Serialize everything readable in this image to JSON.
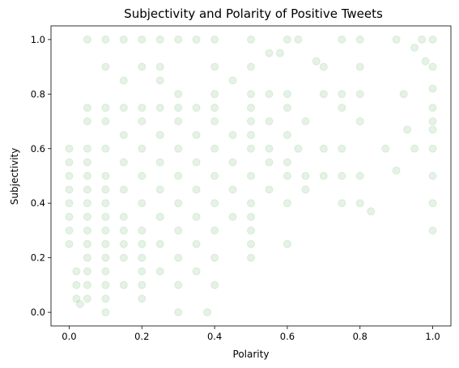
{
  "chart_data": {
    "type": "scatter",
    "title": "Subjectivity and Polarity of Positive Tweets",
    "xlabel": "Polarity",
    "ylabel": "Subjectivity",
    "xlim": [
      -0.05,
      1.05
    ],
    "ylim": [
      -0.05,
      1.05
    ],
    "x_ticks": [
      "0.0",
      "0.2",
      "0.4",
      "0.6",
      "0.8",
      "1.0"
    ],
    "y_ticks": [
      "0.0",
      "0.2",
      "0.4",
      "0.6",
      "0.8",
      "1.0"
    ],
    "grid": false,
    "legend": "none",
    "series": [
      {
        "color": "#008000",
        "alpha": 0.1,
        "marker": "circle",
        "points": [
          [
            0.05,
            1.0
          ],
          [
            0.1,
            1.0
          ],
          [
            0.15,
            1.0
          ],
          [
            0.2,
            1.0
          ],
          [
            0.25,
            1.0
          ],
          [
            0.3,
            1.0
          ],
          [
            0.35,
            1.0
          ],
          [
            0.4,
            1.0
          ],
          [
            0.5,
            1.0
          ],
          [
            0.6,
            1.0
          ],
          [
            0.63,
            1.0
          ],
          [
            0.75,
            1.0
          ],
          [
            0.8,
            1.0
          ],
          [
            0.9,
            1.0
          ],
          [
            1.0,
            1.0
          ],
          [
            0.1,
            0.9
          ],
          [
            0.2,
            0.9
          ],
          [
            0.25,
            0.9
          ],
          [
            0.4,
            0.9
          ],
          [
            0.5,
            0.9
          ],
          [
            0.55,
            0.95
          ],
          [
            0.7,
            0.9
          ],
          [
            0.8,
            0.9
          ],
          [
            1.0,
            0.9
          ],
          [
            0.15,
            0.85
          ],
          [
            0.25,
            0.85
          ],
          [
            0.3,
            0.8
          ],
          [
            0.4,
            0.8
          ],
          [
            0.45,
            0.85
          ],
          [
            0.5,
            0.8
          ],
          [
            0.55,
            0.8
          ],
          [
            0.6,
            0.8
          ],
          [
            0.7,
            0.8
          ],
          [
            0.75,
            0.8
          ],
          [
            0.8,
            0.8
          ],
          [
            0.05,
            0.75
          ],
          [
            0.1,
            0.75
          ],
          [
            0.15,
            0.75
          ],
          [
            0.2,
            0.75
          ],
          [
            0.25,
            0.75
          ],
          [
            0.3,
            0.75
          ],
          [
            0.35,
            0.75
          ],
          [
            0.4,
            0.75
          ],
          [
            0.5,
            0.75
          ],
          [
            0.6,
            0.75
          ],
          [
            0.75,
            0.75
          ],
          [
            1.0,
            0.75
          ],
          [
            0.05,
            0.7
          ],
          [
            0.1,
            0.7
          ],
          [
            0.2,
            0.7
          ],
          [
            0.3,
            0.7
          ],
          [
            0.4,
            0.7
          ],
          [
            0.5,
            0.7
          ],
          [
            0.55,
            0.7
          ],
          [
            0.65,
            0.7
          ],
          [
            0.8,
            0.7
          ],
          [
            1.0,
            0.7
          ],
          [
            0.93,
            0.67
          ],
          [
            0.15,
            0.65
          ],
          [
            0.25,
            0.65
          ],
          [
            0.35,
            0.65
          ],
          [
            0.45,
            0.65
          ],
          [
            0.5,
            0.65
          ],
          [
            0.6,
            0.65
          ],
          [
            0.7,
            0.6
          ],
          [
            0.75,
            0.6
          ],
          [
            0.87,
            0.6
          ],
          [
            1.0,
            0.6
          ],
          [
            0.05,
            0.6
          ],
          [
            0.1,
            0.6
          ],
          [
            0.2,
            0.6
          ],
          [
            0.3,
            0.6
          ],
          [
            0.4,
            0.6
          ],
          [
            0.5,
            0.6
          ],
          [
            0.55,
            0.6
          ],
          [
            0.63,
            0.6
          ],
          [
            0.05,
            0.55
          ],
          [
            0.15,
            0.55
          ],
          [
            0.25,
            0.55
          ],
          [
            0.35,
            0.55
          ],
          [
            0.45,
            0.55
          ],
          [
            0.55,
            0.55
          ],
          [
            0.6,
            0.55
          ],
          [
            0.65,
            0.5
          ],
          [
            0.7,
            0.5
          ],
          [
            0.75,
            0.5
          ],
          [
            0.8,
            0.5
          ],
          [
            1.0,
            0.5
          ],
          [
            0.05,
            0.5
          ],
          [
            0.1,
            0.5
          ],
          [
            0.2,
            0.5
          ],
          [
            0.3,
            0.5
          ],
          [
            0.4,
            0.5
          ],
          [
            0.5,
            0.5
          ],
          [
            0.6,
            0.5
          ],
          [
            0.05,
            0.45
          ],
          [
            0.1,
            0.45
          ],
          [
            0.15,
            0.45
          ],
          [
            0.25,
            0.45
          ],
          [
            0.35,
            0.45
          ],
          [
            0.45,
            0.45
          ],
          [
            0.55,
            0.45
          ],
          [
            0.65,
            0.45
          ],
          [
            0.05,
            0.4
          ],
          [
            0.1,
            0.4
          ],
          [
            0.2,
            0.4
          ],
          [
            0.3,
            0.4
          ],
          [
            0.4,
            0.4
          ],
          [
            0.5,
            0.4
          ],
          [
            0.6,
            0.4
          ],
          [
            0.75,
            0.4
          ],
          [
            0.8,
            0.4
          ],
          [
            1.0,
            0.4
          ],
          [
            0.83,
            0.37
          ],
          [
            0.05,
            0.35
          ],
          [
            0.1,
            0.35
          ],
          [
            0.15,
            0.35
          ],
          [
            0.25,
            0.35
          ],
          [
            0.35,
            0.35
          ],
          [
            0.45,
            0.35
          ],
          [
            0.5,
            0.35
          ],
          [
            0.05,
            0.3
          ],
          [
            0.1,
            0.3
          ],
          [
            0.15,
            0.3
          ],
          [
            0.2,
            0.3
          ],
          [
            0.3,
            0.3
          ],
          [
            0.4,
            0.3
          ],
          [
            0.5,
            0.3
          ],
          [
            1.0,
            0.3
          ],
          [
            0.05,
            0.25
          ],
          [
            0.1,
            0.25
          ],
          [
            0.15,
            0.25
          ],
          [
            0.2,
            0.25
          ],
          [
            0.25,
            0.25
          ],
          [
            0.35,
            0.25
          ],
          [
            0.5,
            0.25
          ],
          [
            0.6,
            0.25
          ],
          [
            0.05,
            0.2
          ],
          [
            0.1,
            0.2
          ],
          [
            0.15,
            0.2
          ],
          [
            0.2,
            0.2
          ],
          [
            0.3,
            0.2
          ],
          [
            0.4,
            0.2
          ],
          [
            0.5,
            0.2
          ],
          [
            0.02,
            0.15
          ],
          [
            0.05,
            0.15
          ],
          [
            0.1,
            0.15
          ],
          [
            0.2,
            0.15
          ],
          [
            0.25,
            0.15
          ],
          [
            0.35,
            0.15
          ],
          [
            0.02,
            0.1
          ],
          [
            0.05,
            0.1
          ],
          [
            0.1,
            0.1
          ],
          [
            0.15,
            0.1
          ],
          [
            0.2,
            0.1
          ],
          [
            0.3,
            0.1
          ],
          [
            0.4,
            0.1
          ],
          [
            0.02,
            0.05
          ],
          [
            0.05,
            0.05
          ],
          [
            0.1,
            0.05
          ],
          [
            0.2,
            0.05
          ],
          [
            0.03,
            0.03
          ],
          [
            0.1,
            0.0
          ],
          [
            0.3,
            0.0
          ],
          [
            0.38,
            0.0
          ],
          [
            0.0,
            0.35
          ],
          [
            0.0,
            0.45
          ],
          [
            0.0,
            0.55
          ],
          [
            0.0,
            0.6
          ],
          [
            0.0,
            0.25
          ],
          [
            0.0,
            0.5
          ],
          [
            0.0,
            0.4
          ],
          [
            0.0,
            0.3
          ],
          [
            0.58,
            0.95
          ],
          [
            0.68,
            0.92
          ],
          [
            0.97,
            1.0
          ],
          [
            0.95,
            0.97
          ],
          [
            0.98,
            0.92
          ],
          [
            0.92,
            0.8
          ],
          [
            0.9,
            0.52
          ],
          [
            0.95,
            0.6
          ],
          [
            1.0,
            0.82
          ],
          [
            1.0,
            0.67
          ]
        ]
      }
    ]
  }
}
